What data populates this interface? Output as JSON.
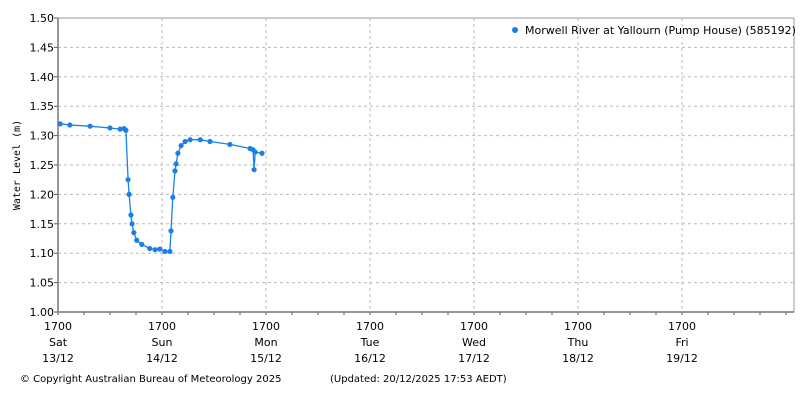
{
  "chart_data": {
    "type": "line",
    "title": "",
    "ylabel": "Water Level (m)",
    "xlabel": "",
    "ylim": [
      1.0,
      1.5
    ],
    "yticks": [
      "1.00",
      "1.05",
      "1.10",
      "1.15",
      "1.20",
      "1.25",
      "1.30",
      "1.35",
      "1.40",
      "1.45",
      "1.50"
    ],
    "xlim": [
      "2025-12-13T17:00",
      "2025-12-20T17:00"
    ],
    "xticks": [
      {
        "time": "1700",
        "day": "Sat",
        "date": "13/12",
        "at": "2025-12-13T17:00"
      },
      {
        "time": "1700",
        "day": "Sun",
        "date": "14/12",
        "at": "2025-12-14T17:00"
      },
      {
        "time": "1700",
        "day": "Mon",
        "date": "15/12",
        "at": "2025-12-15T17:00"
      },
      {
        "time": "1700",
        "day": "Tue",
        "date": "16/12",
        "at": "2025-12-16T17:00"
      },
      {
        "time": "1700",
        "day": "Wed",
        "date": "17/12",
        "at": "2025-12-17T17:00"
      },
      {
        "time": "1700",
        "day": "Thu",
        "date": "18/12",
        "at": "2025-12-18T17:00"
      },
      {
        "time": "1700",
        "day": "Fri",
        "date": "19/12",
        "at": "2025-12-19T17:00"
      }
    ],
    "grid": true,
    "legend_position": "top-right",
    "series": [
      {
        "name": "Morwell River at Yallourn (Pump House) (585192)",
        "color": "#1a7fe8",
        "points": [
          [
            "2025-12-13T17:30",
            1.32
          ],
          [
            "2025-12-13T19:45",
            1.318
          ],
          [
            "2025-12-14T00:25",
            1.316
          ],
          [
            "2025-12-14T05:00",
            1.313
          ],
          [
            "2025-12-14T07:20",
            1.311
          ],
          [
            "2025-12-14T08:15",
            1.312
          ],
          [
            "2025-12-14T08:40",
            1.309
          ],
          [
            "2025-12-14T09:10",
            1.225
          ],
          [
            "2025-12-14T09:25",
            1.2
          ],
          [
            "2025-12-14T09:50",
            1.165
          ],
          [
            "2025-12-14T10:05",
            1.15
          ],
          [
            "2025-12-14T10:30",
            1.135
          ],
          [
            "2025-12-14T11:10",
            1.122
          ],
          [
            "2025-12-14T12:20",
            1.115
          ],
          [
            "2025-12-14T14:10",
            1.108
          ],
          [
            "2025-12-14T15:25",
            1.106
          ],
          [
            "2025-12-14T16:30",
            1.107
          ],
          [
            "2025-12-14T17:40",
            1.103
          ],
          [
            "2025-12-14T18:50",
            1.103
          ],
          [
            "2025-12-14T19:05",
            1.138
          ],
          [
            "2025-12-14T19:30",
            1.195
          ],
          [
            "2025-12-14T20:00",
            1.24
          ],
          [
            "2025-12-14T20:15",
            1.252
          ],
          [
            "2025-12-14T20:40",
            1.27
          ],
          [
            "2025-12-14T21:25",
            1.283
          ],
          [
            "2025-12-14T22:20",
            1.29
          ],
          [
            "2025-12-14T23:30",
            1.293
          ],
          [
            "2025-12-15T01:50",
            1.293
          ],
          [
            "2025-12-15T04:05",
            1.29
          ],
          [
            "2025-12-15T08:40",
            1.285
          ],
          [
            "2025-12-15T13:20",
            1.278
          ],
          [
            "2025-12-15T14:00",
            1.276
          ],
          [
            "2025-12-15T14:15",
            1.242
          ],
          [
            "2025-12-15T14:30",
            1.272
          ],
          [
            "2025-12-15T16:05",
            1.27
          ]
        ]
      }
    ]
  },
  "footer": {
    "copyright": "© Copyright Australian Bureau of Meteorology 2025",
    "updated": "(Updated: 20/12/2025 17:53 AEDT)"
  }
}
